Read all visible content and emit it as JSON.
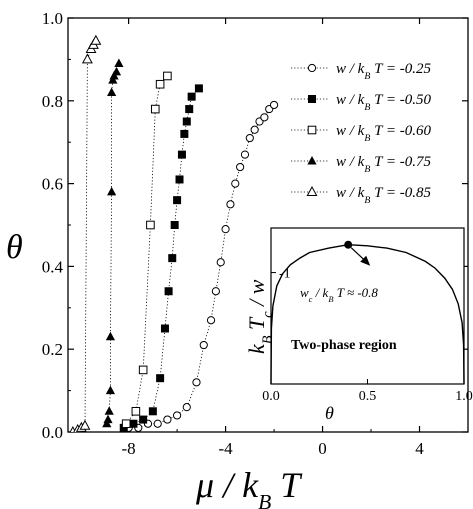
{
  "chart_data": [
    {
      "type": "scatter",
      "title": "",
      "xlabel": "μ / k_B T",
      "ylabel": "θ",
      "xlim": [
        -10.5,
        6
      ],
      "ylim": [
        0,
        1.0
      ],
      "xticks": [
        -8,
        -4,
        0,
        4
      ],
      "yticks": [
        0.0,
        0.2,
        0.4,
        0.6,
        0.8,
        1.0
      ],
      "xtick_labels": [
        "-8",
        "-4",
        "0",
        "4"
      ],
      "ytick_labels": [
        "0.0",
        "0.2",
        "0.4",
        "0.6",
        "0.8",
        "1.0"
      ],
      "line_style": "dotted",
      "grid": false,
      "legend_position": "top-right",
      "series": [
        {
          "name": "w / k_B T = -0.25",
          "marker": "open-circle",
          "x": [
            -8.0,
            -7.6,
            -7.2,
            -6.8,
            -6.4,
            -6.0,
            -5.6,
            -5.2,
            -4.9,
            -4.6,
            -4.4,
            -4.2,
            -4.0,
            -3.8,
            -3.6,
            -3.4,
            -3.2,
            -3.0,
            -2.8,
            -2.6,
            -2.4,
            -2.2,
            -2.0
          ],
          "y": [
            0.01,
            0.01,
            0.02,
            0.02,
            0.03,
            0.04,
            0.06,
            0.12,
            0.21,
            0.27,
            0.34,
            0.41,
            0.49,
            0.55,
            0.6,
            0.64,
            0.67,
            0.71,
            0.73,
            0.75,
            0.76,
            0.78,
            0.79
          ]
        },
        {
          "name": "w / k_B T = -0.50",
          "marker": "filled-square",
          "x": [
            -8.2,
            -7.8,
            -7.4,
            -7.0,
            -6.7,
            -6.5,
            -6.35,
            -6.2,
            -6.1,
            -6.0,
            -5.9,
            -5.8,
            -5.7,
            -5.6,
            -5.5,
            -5.4,
            -5.1
          ],
          "y": [
            0.01,
            0.02,
            0.03,
            0.05,
            0.13,
            0.25,
            0.34,
            0.42,
            0.5,
            0.56,
            0.61,
            0.67,
            0.72,
            0.75,
            0.78,
            0.81,
            0.83
          ]
        },
        {
          "name": "w / k_B T = -0.60",
          "marker": "open-square",
          "x": [
            -8.1,
            -7.7,
            -7.4,
            -7.1,
            -6.9,
            -6.7,
            -6.4
          ],
          "y": [
            0.02,
            0.05,
            0.15,
            0.5,
            0.78,
            0.84,
            0.86
          ]
        },
        {
          "name": "w / k_B T = -0.75",
          "marker": "filled-triangle",
          "x": [
            -8.9,
            -8.85,
            -8.8,
            -8.75,
            -8.75,
            -8.7,
            -8.7,
            -8.65,
            -8.6,
            -8.5,
            -8.4
          ],
          "y": [
            0.02,
            0.03,
            0.05,
            0.1,
            0.23,
            0.58,
            0.82,
            0.85,
            0.86,
            0.87,
            0.89
          ]
        },
        {
          "name": "w / k_B T = -0.85",
          "marker": "open-triangle",
          "x": [
            -10.3,
            -10.1,
            -9.95,
            -9.8,
            -9.7,
            -9.55,
            -9.45,
            -9.35
          ],
          "y": [
            0.0,
            0.005,
            0.01,
            0.015,
            0.9,
            0.925,
            0.935,
            0.945
          ]
        }
      ]
    },
    {
      "type": "line",
      "title": "",
      "xlabel": "θ",
      "ylabel": "k_B T_c / w",
      "xlim": [
        0.0,
        1.0
      ],
      "ylim": [
        0,
        -1.4
      ],
      "xticks": [
        0.0,
        0.5,
        1.0
      ],
      "yticks": [
        -1
      ],
      "xtick_labels": [
        "0.0",
        "0.5",
        "1.0"
      ],
      "ytick_labels": [
        "-1"
      ],
      "region_label": "Two-phase region",
      "critical_point": {
        "x": 0.4,
        "y": -1.25,
        "label": "w_c / k_B T ≈ -0.8"
      },
      "curve": {
        "x": [
          0.0,
          0.002,
          0.01,
          0.03,
          0.06,
          0.1,
          0.15,
          0.2,
          0.3,
          0.4,
          0.5,
          0.6,
          0.7,
          0.8,
          0.85,
          0.9,
          0.94,
          0.97,
          0.99,
          0.998,
          1.0
        ],
        "y": [
          0.0,
          -0.5,
          -0.7,
          -0.88,
          -0.99,
          -1.07,
          -1.13,
          -1.18,
          -1.22,
          -1.25,
          -1.24,
          -1.22,
          -1.18,
          -1.1,
          -1.04,
          -0.95,
          -0.85,
          -0.72,
          -0.55,
          -0.35,
          0.0
        ]
      }
    }
  ]
}
